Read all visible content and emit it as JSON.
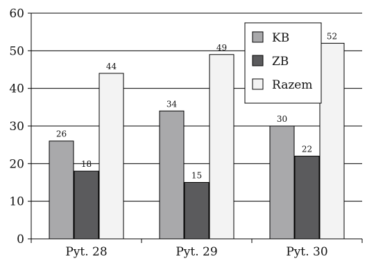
{
  "chart_data": {
    "type": "bar",
    "title": "",
    "xlabel": "",
    "ylabel": "",
    "categories": [
      "Pyt. 28",
      "Pyt. 29",
      "Pyt. 30"
    ],
    "ylim": [
      0,
      60
    ],
    "yticks": [
      0,
      10,
      20,
      30,
      40,
      50,
      60
    ],
    "grid": true,
    "legend_position": "top-right",
    "series": [
      {
        "name": "KB",
        "values": [
          26,
          34,
          30
        ],
        "color": "#a9a9ab"
      },
      {
        "name": "ZB",
        "values": [
          18,
          15,
          22
        ],
        "color": "#5b5b5d"
      },
      {
        "name": "Razem",
        "values": [
          44,
          49,
          52
        ],
        "color": "#f3f3f3"
      }
    ]
  }
}
